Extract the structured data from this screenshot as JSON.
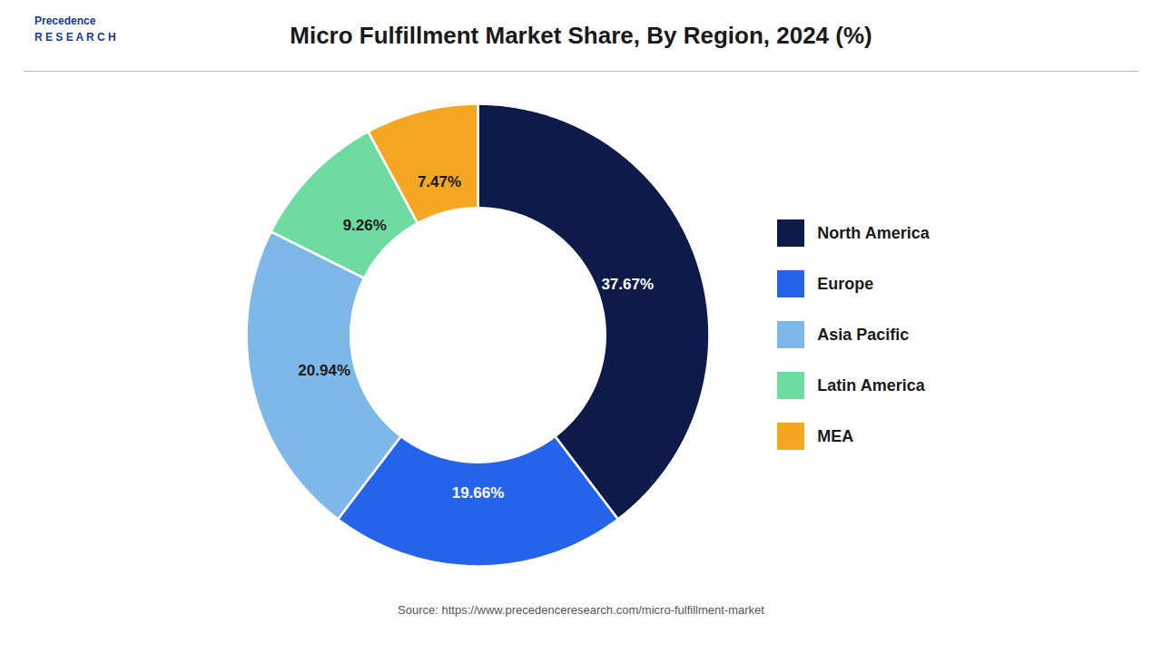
{
  "chart_data": {
    "type": "pie",
    "title": "Micro Fulfillment Market Share, By Region, 2024 (%)",
    "categories": [
      "North America",
      "Europe",
      "Asia Pacific",
      "Latin America",
      "MEA"
    ],
    "values": [
      37.67,
      19.66,
      20.94,
      9.26,
      7.47
    ],
    "value_labels": [
      "37.67%",
      "19.66%",
      "20.94%",
      "9.26%",
      "7.47%"
    ],
    "colors": [
      "#0d1b4b",
      "#2563eb",
      "#7db8e8",
      "#6edba0",
      "#f5a623"
    ],
    "data_labels": true,
    "legend": "right",
    "annotations": [
      "Precedence",
      "R E S E A R C H"
    ],
    "source": "Source: https://www.precedenceresearch.com/micro-fulfillment-market"
  }
}
